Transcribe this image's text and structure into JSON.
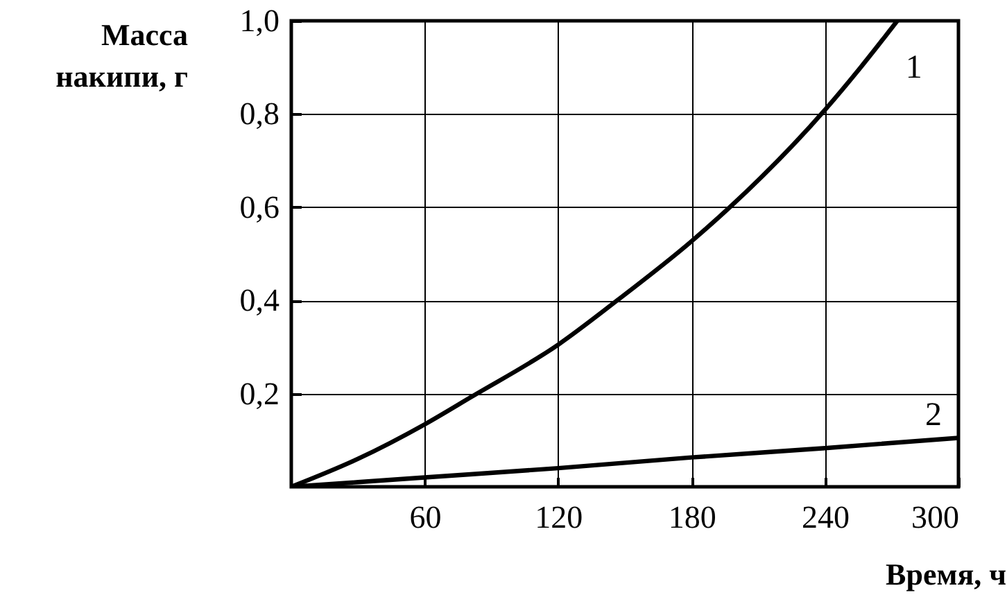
{
  "chart_data": {
    "type": "line",
    "xlabel": "Время, ч",
    "ylabel": "Масса накипи, г",
    "xlim": [
      0,
      300
    ],
    "xticks": [
      60,
      120,
      180,
      240,
      300
    ],
    "ylim": [
      0,
      1.0
    ],
    "yticks": [
      {
        "value": 0.2,
        "label": "0,2"
      },
      {
        "value": 0.4,
        "label": "0,4"
      },
      {
        "value": 0.6,
        "label": "0,6"
      },
      {
        "value": 0.8,
        "label": "0,8"
      },
      {
        "value": 1.0,
        "label": "1,0"
      }
    ],
    "grid": true,
    "line_style": "solid",
    "series": [
      {
        "name": "1",
        "color": "#000000",
        "x": [
          0,
          30,
          60,
          81,
          120,
          146,
          180,
          197,
          240,
          256,
          272.5
        ],
        "values": [
          0,
          0.06,
          0.134,
          0.193,
          0.305,
          0.398,
          0.527,
          0.599,
          0.809,
          0.9,
          1.0
        ]
      },
      {
        "name": "2",
        "color": "#000000",
        "x": [
          0,
          60,
          120,
          180,
          240,
          300
        ],
        "values": [
          0,
          0.02,
          0.04,
          0.063,
          0.083,
          0.105
        ]
      }
    ]
  }
}
